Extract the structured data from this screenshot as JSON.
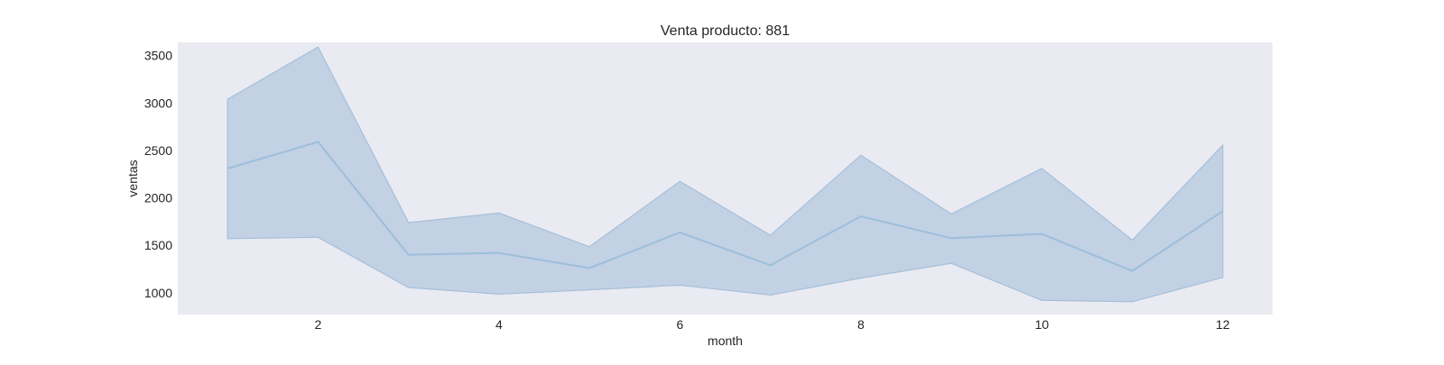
{
  "chart_data": {
    "type": "line",
    "title": "Venta producto: 881",
    "xlabel": "month",
    "ylabel": "ventas",
    "xlim": [
      0.45,
      12.55
    ],
    "ylim": [
      770,
      3640
    ],
    "x_ticks": [
      2,
      4,
      6,
      8,
      10,
      12
    ],
    "x_tick_labels": [
      "2",
      "4",
      "6",
      "8",
      "10",
      "12"
    ],
    "y_ticks": [
      1000,
      1500,
      2000,
      2500,
      3000,
      3500
    ],
    "y_tick_labels": [
      "1000",
      "1500",
      "2000",
      "2500",
      "3000",
      "3500"
    ],
    "grid": false,
    "legend": "none",
    "x": [
      1,
      2,
      3,
      4,
      5,
      6,
      7,
      8,
      9,
      10,
      11,
      12
    ],
    "series": [
      {
        "values": [
          2310,
          2590,
          1400,
          1420,
          1260,
          1635,
          1290,
          1805,
          1575,
          1620,
          1230,
          1860
        ],
        "lower": [
          1570,
          1585,
          1055,
          985,
          1030,
          1080,
          975,
          1155,
          1310,
          920,
          905,
          1160
        ],
        "upper": [
          3040,
          3590,
          1740,
          1840,
          1485,
          2175,
          1605,
          2450,
          1830,
          2310,
          1555,
          2555
        ]
      }
    ],
    "colors": {
      "plot_background": "#eaeaf2",
      "line": "#9ebedb",
      "band_fill": "#a9c2dc",
      "band_edge": "#a5c0da"
    }
  }
}
